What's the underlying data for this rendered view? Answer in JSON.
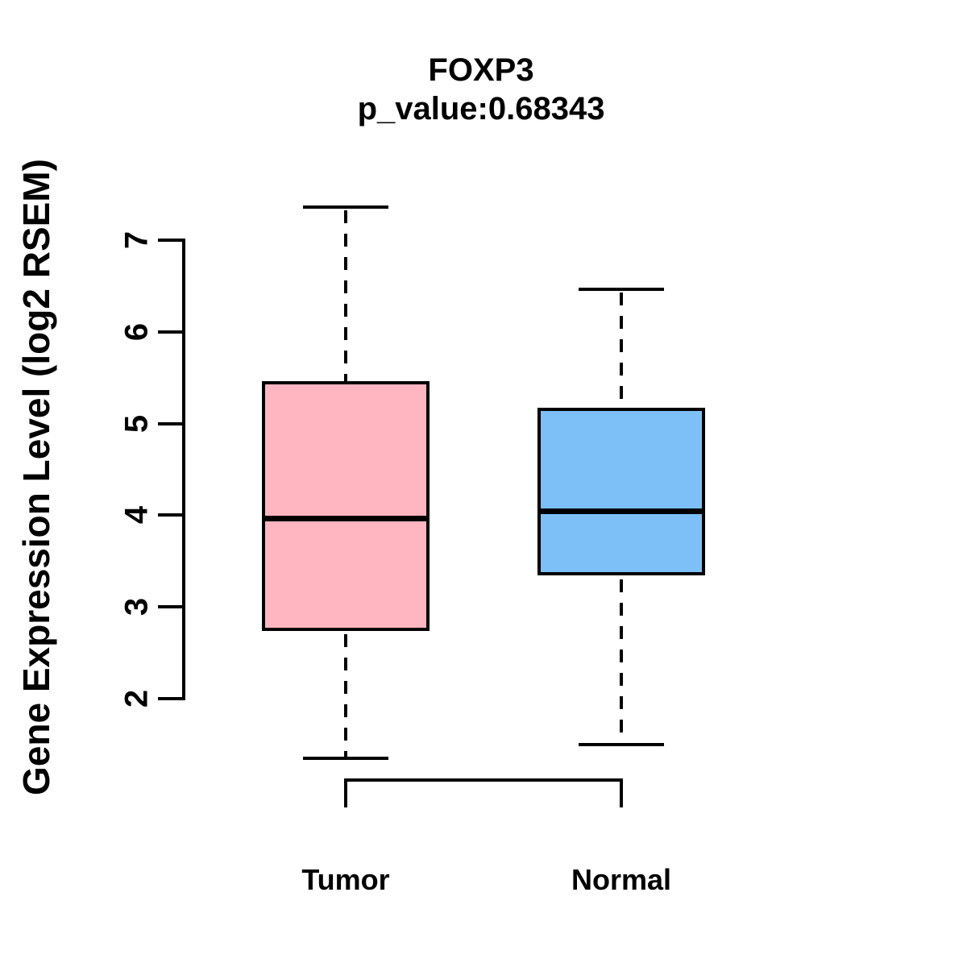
{
  "chart_data": {
    "type": "boxplot",
    "title": "FOXP3",
    "subtitle": "p_value:0.68343",
    "ylabel": "Gene Expression Level (log2 RSEM)",
    "xlabel": "",
    "yticks": [
      2,
      3,
      4,
      5,
      6,
      7
    ],
    "ylim": [
      1.2,
      7.5
    ],
    "grid": false,
    "legend": "none",
    "groups": [
      {
        "label": "Tumor",
        "fill_color": "#FFB6C1",
        "whisker_low": 1.35,
        "q1": 2.74,
        "median": 3.96,
        "q3": 5.46,
        "whisker_high": 7.36
      },
      {
        "label": "Normal",
        "fill_color": "#7CC0F7",
        "whisker_low": 1.5,
        "q1": 3.34,
        "median": 4.04,
        "q3": 5.17,
        "whisker_high": 6.46
      }
    ]
  },
  "colors": {
    "background": "#FFFFFF",
    "line": "#000000",
    "text": "#000000",
    "tumor_fill": "#FFB6C1",
    "normal_fill": "#7CC0F7"
  }
}
